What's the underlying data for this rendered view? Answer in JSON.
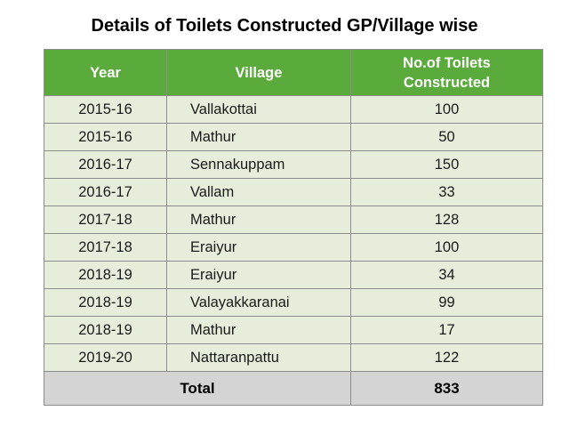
{
  "title": "Details of Toilets Constructed GP/Village wise",
  "table": {
    "headers": {
      "year": "Year",
      "village": "Village",
      "count_line1": "No.of Toilets",
      "count_line2": "Constructed"
    },
    "rows": [
      {
        "year": "2015-16",
        "village": "Vallakottai",
        "count": "100"
      },
      {
        "year": "2015-16",
        "village": "Mathur",
        "count": "50"
      },
      {
        "year": "2016-17",
        "village": "Sennakuppam",
        "count": "150"
      },
      {
        "year": "2016-17",
        "village": "Vallam",
        "count": "33"
      },
      {
        "year": "2017-18",
        "village": "Mathur",
        "count": "128"
      },
      {
        "year": "2017-18",
        "village": "Eraiyur",
        "count": "100"
      },
      {
        "year": "2018-19",
        "village": "Eraiyur",
        "count": "34"
      },
      {
        "year": "2018-19",
        "village": "Valayakkaranai",
        "count": "99"
      },
      {
        "year": "2018-19",
        "village": "Mathur",
        "count": "17"
      },
      {
        "year": "2019-20",
        "village": "Nattaranpattu",
        "count": "122"
      }
    ],
    "total": {
      "label": "Total",
      "value": "833"
    }
  },
  "colors": {
    "header_bg": "#5aaa3c",
    "row_bg": "#e6eedb",
    "total_bg": "#d4d4d4"
  }
}
